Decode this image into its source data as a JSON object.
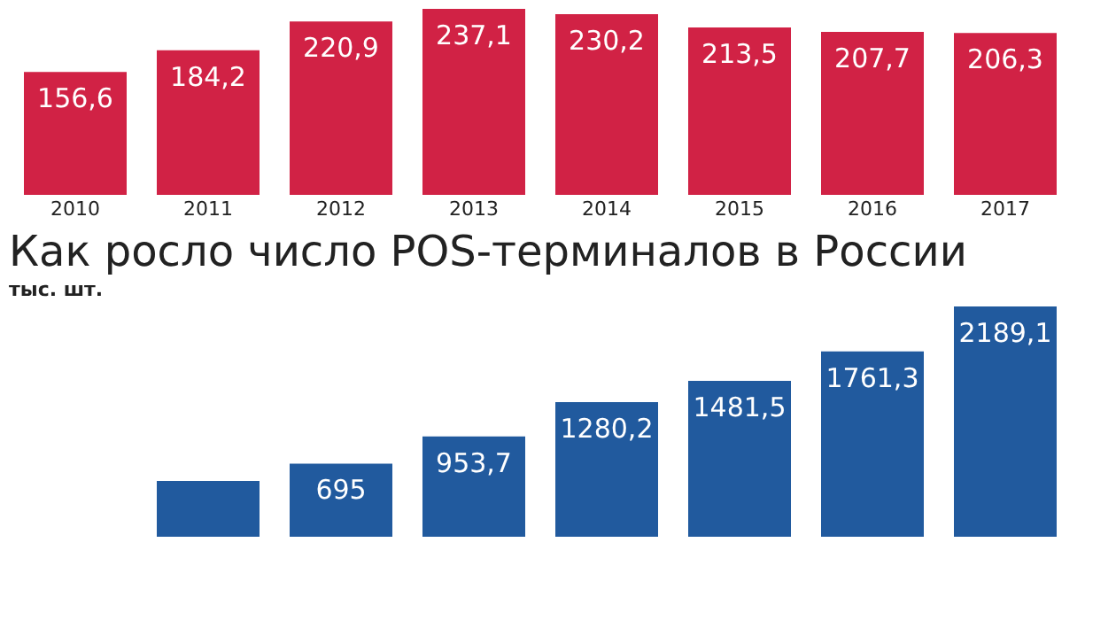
{
  "chart_data": [
    {
      "type": "bar",
      "categories": [
        "2010",
        "2011",
        "2012",
        "2013",
        "2014",
        "2015",
        "2016",
        "2017"
      ],
      "series": [
        {
          "color": "#d12245",
          "values": [
            156.6,
            184.2,
            220.9,
            237.1,
            230.2,
            213.5,
            207.7,
            206.3
          ],
          "value_labels": [
            "156,6",
            "184,2",
            "220,9",
            "237,1",
            "230,2",
            "213,5",
            "207,7",
            "206,3"
          ]
        }
      ],
      "tick_labels": "x"
    },
    {
      "type": "bar",
      "title": "Как росло число POS-терминалов в России",
      "subtitle": "тыс. шт.",
      "categories": [
        null,
        null,
        null,
        null,
        null,
        null,
        null,
        null
      ],
      "series": [
        {
          "color": "#215a9e",
          "values": [
            null,
            530,
            695,
            953.7,
            1280.2,
            1481.5,
            1761.3,
            2189.1
          ],
          "value_labels": [
            null,
            null,
            "695",
            "953,7",
            "1280,2",
            "1481,5",
            "1761,3",
            "2189,1"
          ]
        }
      ],
      "tick_labels": false
    }
  ]
}
